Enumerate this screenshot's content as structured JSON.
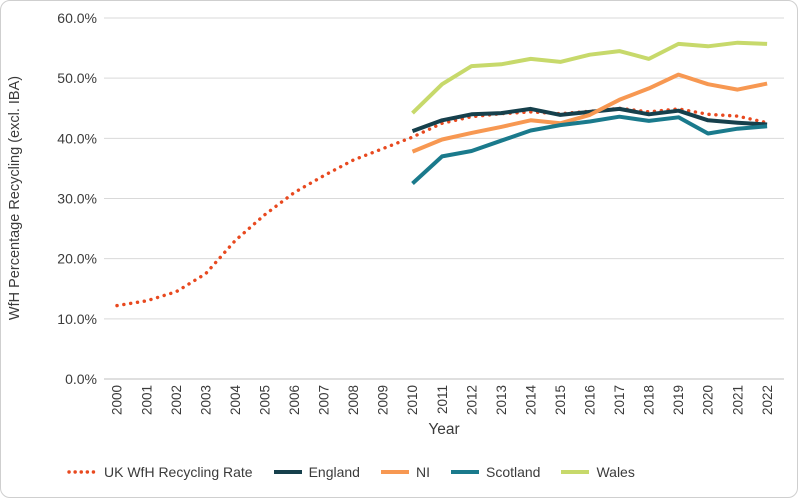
{
  "chart": {
    "y_axis_title": "WfH Percentage Recycling (excl. IBA)",
    "x_axis_title": "Year",
    "background_color": "#FFFFFF",
    "gridline_color": "#D9D9D9",
    "axis_line_color": "#BFBFBF",
    "text_color": "#3B3B3B"
  },
  "chart_data": {
    "type": "line",
    "title": "",
    "xlabel": "Year",
    "ylabel": "WfH Percentage Recycling (excl. IBA)",
    "ylim": [
      0,
      60
    ],
    "y_tick_step": 10,
    "grid": true,
    "legend_position": "bottom",
    "y_tick_labels": [
      "0.0%",
      "10.0%",
      "20.0%",
      "30.0%",
      "40.0%",
      "50.0%",
      "60.0%"
    ],
    "x_ticks": [
      2000,
      2001,
      2002,
      2003,
      2004,
      2005,
      2006,
      2007,
      2008,
      2009,
      2010,
      2011,
      2012,
      2013,
      2014,
      2015,
      2016,
      2017,
      2018,
      2019,
      2020,
      2021,
      2022
    ],
    "x_tick_labels": [
      "2000",
      "2001",
      "2002",
      "2003",
      "2004",
      "2005",
      "2006",
      "2007",
      "2008",
      "2009",
      "2010",
      "2011",
      "2012",
      "2013",
      "2014",
      "2015",
      "2016",
      "2017",
      "2018",
      "2019",
      "2020",
      "2021",
      "2022"
    ],
    "series": [
      {
        "name": "UK WfH Recycling Rate",
        "color": "#E8491F",
        "style": "dotted",
        "x": [
          2000,
          2001,
          2002,
          2003,
          2004,
          2005,
          2006,
          2007,
          2008,
          2009,
          2010,
          2011,
          2012,
          2013,
          2014,
          2015,
          2016,
          2017,
          2018,
          2019,
          2020,
          2021,
          2022
        ],
        "values": [
          12.2,
          13.0,
          14.5,
          17.5,
          23.0,
          27.3,
          31.0,
          33.8,
          36.4,
          38.3,
          40.2,
          42.5,
          43.6,
          44.1,
          44.4,
          44.1,
          44.5,
          45.0,
          44.4,
          44.9,
          44.0,
          43.7,
          42.6
        ]
      },
      {
        "name": "England",
        "color": "#16404C",
        "style": "solid",
        "x": [
          2010,
          2011,
          2012,
          2013,
          2014,
          2015,
          2016,
          2017,
          2018,
          2019,
          2020,
          2021,
          2022
        ],
        "values": [
          41.2,
          43.0,
          44.0,
          44.2,
          44.9,
          43.9,
          44.4,
          44.9,
          44.0,
          44.6,
          43.0,
          42.6,
          42.3
        ]
      },
      {
        "name": "NI",
        "color": "#F79852",
        "style": "solid",
        "x": [
          2010,
          2011,
          2012,
          2013,
          2014,
          2015,
          2016,
          2017,
          2018,
          2019,
          2020,
          2021,
          2022
        ],
        "values": [
          37.8,
          39.8,
          40.9,
          41.9,
          43.0,
          42.5,
          43.9,
          46.4,
          48.3,
          50.6,
          49.0,
          48.1,
          49.1
        ]
      },
      {
        "name": "Scotland",
        "color": "#1A7A8C",
        "style": "solid",
        "x": [
          2010,
          2011,
          2012,
          2013,
          2014,
          2015,
          2016,
          2017,
          2018,
          2019,
          2020,
          2021,
          2022
        ],
        "values": [
          32.5,
          37.0,
          37.9,
          39.6,
          41.3,
          42.2,
          42.8,
          43.6,
          42.9,
          43.5,
          40.8,
          41.6,
          42.0
        ]
      },
      {
        "name": "Wales",
        "color": "#C7D96B",
        "style": "solid",
        "x": [
          2010,
          2011,
          2012,
          2013,
          2014,
          2015,
          2016,
          2017,
          2018,
          2019,
          2020,
          2021,
          2022
        ],
        "values": [
          44.2,
          49.0,
          52.0,
          52.3,
          53.2,
          52.7,
          53.9,
          54.5,
          53.2,
          55.7,
          55.3,
          55.9,
          55.7
        ]
      }
    ]
  }
}
